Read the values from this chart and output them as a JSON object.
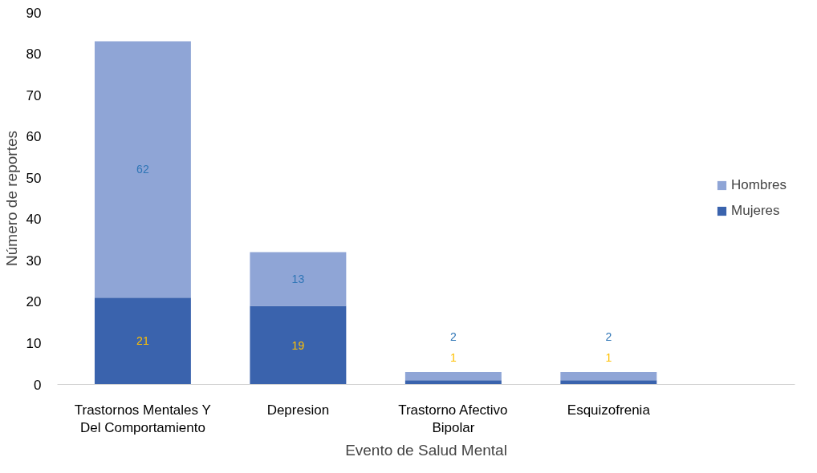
{
  "chart_data": {
    "type": "bar",
    "stacked": true,
    "xlabel": "Evento de Salud Mental",
    "ylabel": "Número de reportes",
    "categories": [
      "Trastornos Mentales Y Del Comportamiento",
      "Depresion",
      "Trastorno Afectivo Bipolar",
      "Esquizofrenia"
    ],
    "series": [
      {
        "name": "Mujeres",
        "color": "#3a63ad",
        "values": [
          21,
          19,
          1,
          1
        ]
      },
      {
        "name": "Hombres",
        "color": "#8fa5d6",
        "values": [
          62,
          13,
          2,
          2
        ]
      }
    ],
    "ylim": [
      0,
      90
    ],
    "yticks": [
      0,
      10,
      20,
      30,
      40,
      50,
      60,
      70,
      80,
      90
    ],
    "grid": false,
    "legend": "right",
    "data_labels": true
  }
}
